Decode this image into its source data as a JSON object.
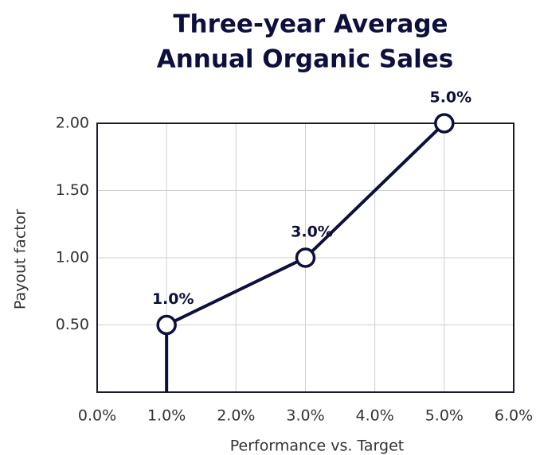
{
  "chart_data": {
    "type": "line",
    "title": [
      "Three-year Average",
      "Annual Organic Sales"
    ],
    "xlabel": "Performance vs. Target",
    "ylabel": "Payout factor",
    "x": [
      1,
      1,
      3,
      5
    ],
    "series": [
      {
        "color": "#0d0f3d",
        "values": [
          0,
          0.5,
          1,
          2
        ],
        "value_labels": [
          null,
          "1.0%",
          "3.0%",
          "5.0%"
        ]
      }
    ],
    "xlim": [
      0,
      6
    ],
    "xticks": [
      {
        "value": 0,
        "label": "0.0%"
      },
      {
        "value": 1,
        "label": "1.0%"
      },
      {
        "value": 2,
        "label": "2.0%"
      },
      {
        "value": 3,
        "label": "3.0%"
      },
      {
        "value": 4,
        "label": "4.0%"
      },
      {
        "value": 5,
        "label": "5.0%"
      },
      {
        "value": 6,
        "label": "6.0%"
      }
    ],
    "ylim": [
      0,
      2
    ],
    "yticks": [
      {
        "value": 0.5,
        "label": "0.50"
      },
      {
        "value": 1,
        "label": "1.00"
      },
      {
        "value": 1.5,
        "label": "1.50"
      },
      {
        "value": 2,
        "label": "2.00"
      }
    ],
    "grid": true
  }
}
